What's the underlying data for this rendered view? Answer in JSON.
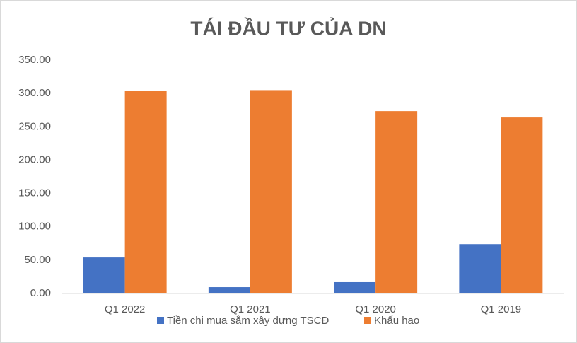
{
  "chart_data": {
    "type": "bar",
    "title": "TÁI ĐẦU TƯ CỦA DN",
    "categories": [
      "Q1 2022",
      "Q1 2021",
      "Q1 2020",
      "Q1 2019"
    ],
    "series": [
      {
        "name": "Tiền chi mua sắm xây dựng TSCĐ",
        "color": "#4472c4",
        "values": [
          54,
          9.5,
          17,
          74
        ]
      },
      {
        "name": "Khấu hao",
        "color": "#ed7d31",
        "values": [
          304,
          305,
          273.5,
          264
        ]
      }
    ],
    "ylim": [
      0,
      350
    ],
    "yticks": [
      {
        "value": 0,
        "label": "0.00"
      },
      {
        "value": 50,
        "label": "50.00"
      },
      {
        "value": 100,
        "label": "100.00"
      },
      {
        "value": 150,
        "label": "150.00"
      },
      {
        "value": 200,
        "label": "200.00"
      },
      {
        "value": 250,
        "label": "250.00"
      },
      {
        "value": 300,
        "label": "300.00"
      },
      {
        "value": 350,
        "label": "350.00"
      }
    ],
    "grid": false,
    "legend": "bottom"
  }
}
